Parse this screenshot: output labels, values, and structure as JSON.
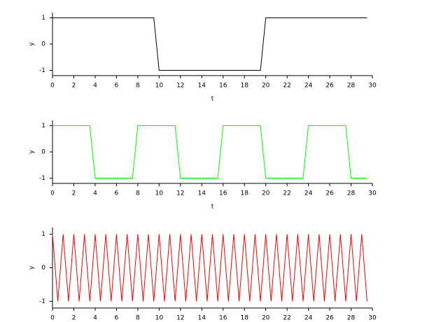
{
  "chart_data": [
    {
      "type": "line",
      "x": [
        0,
        9.5,
        10,
        19.5,
        20,
        29.5
      ],
      "series": [
        {
          "color": "#000000",
          "values": [
            1,
            1,
            -1,
            -1,
            1,
            1
          ]
        }
      ],
      "xlabel": "t",
      "ylabel": "y",
      "xlim": [
        0,
        30
      ],
      "ylim": [
        -1.2,
        1.2
      ],
      "xticks": [
        0,
        2,
        4,
        6,
        8,
        10,
        12,
        14,
        16,
        18,
        20,
        22,
        24,
        26,
        28,
        30
      ],
      "yticks": [
        -1,
        0,
        1
      ]
    },
    {
      "type": "line",
      "x": [
        0,
        3.5,
        4,
        7.5,
        8,
        11.5,
        12,
        15.5,
        16,
        19.5,
        20,
        23.5,
        24,
        27.5,
        28,
        29.5
      ],
      "series": [
        {
          "color": "#00ff00",
          "values": [
            1,
            1,
            -1,
            -1,
            1,
            1,
            -1,
            -1,
            1,
            1,
            -1,
            -1,
            1,
            1,
            -1,
            -1
          ]
        }
      ],
      "xlabel": "t",
      "ylabel": "y",
      "xlim": [
        0,
        30
      ],
      "ylim": [
        -1.2,
        1.2
      ],
      "xticks": [
        0,
        2,
        4,
        6,
        8,
        10,
        12,
        14,
        16,
        18,
        20,
        22,
        24,
        26,
        28,
        30
      ],
      "yticks": [
        -1,
        0,
        1
      ]
    },
    {
      "type": "line",
      "x": [
        0,
        0.5,
        1,
        1.5,
        2,
        2.5,
        3,
        3.5,
        4,
        4.5,
        5,
        5.5,
        6,
        6.5,
        7,
        7.5,
        8,
        8.5,
        9,
        9.5,
        10,
        10.5,
        11,
        11.5,
        12,
        12.5,
        13,
        13.5,
        14,
        14.5,
        15,
        15.5,
        16,
        16.5,
        17,
        17.5,
        18,
        18.5,
        19,
        19.5,
        20,
        20.5,
        21,
        21.5,
        22,
        22.5,
        23,
        23.5,
        24,
        24.5,
        25,
        25.5,
        26,
        26.5,
        27,
        27.5,
        28,
        28.5,
        29,
        29.5
      ],
      "series": [
        {
          "color": "#ff0000",
          "values": [
            1,
            -1,
            1,
            -1,
            1,
            -1,
            1,
            -1,
            1,
            -1,
            1,
            -1,
            1,
            -1,
            1,
            -1,
            1,
            -1,
            1,
            -1,
            1,
            -1,
            1,
            -1,
            1,
            -1,
            1,
            -1,
            1,
            -1,
            1,
            -1,
            1,
            -1,
            1,
            -1,
            1,
            -1,
            1,
            -1,
            1,
            -1,
            1,
            -1,
            1,
            -1,
            1,
            -1,
            1,
            -1,
            1,
            -1,
            1,
            -1,
            1,
            -1,
            1,
            -1,
            1,
            -1
          ]
        }
      ],
      "ylabel": "y",
      "xlim": [
        0,
        30
      ],
      "ylim": [
        -1.2,
        1.2
      ],
      "xticks": [
        0,
        2,
        4,
        6,
        8,
        10,
        12,
        14,
        16,
        18,
        20,
        22,
        24,
        26,
        28,
        30
      ],
      "yticks": [
        -1,
        0,
        1
      ]
    }
  ]
}
